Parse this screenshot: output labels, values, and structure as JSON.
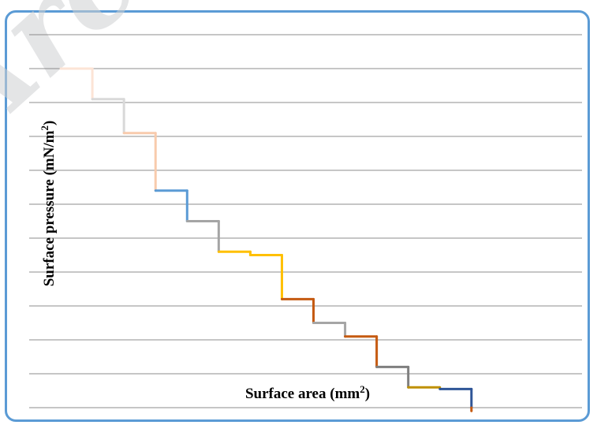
{
  "watermark": "Arc",
  "chart_data": {
    "type": "line",
    "xlabel_main": "Surface area (mm",
    "xlabel_sup": "2",
    "xlabel_end": ")",
    "ylabel_main": "Surface pressure (mN/m",
    "ylabel_sup": "2",
    "ylabel_end": ")",
    "grid": "horizontal",
    "legend": "none",
    "ylim": [
      0,
      11
    ],
    "xlim": [
      0,
      17.5
    ],
    "series": [
      {
        "color": "#fce4d6",
        "points": [
          [
            1,
            10
          ],
          [
            2,
            10
          ],
          [
            2,
            9.1
          ]
        ]
      },
      {
        "color": "#d9d9d9",
        "points": [
          [
            2,
            9.1
          ],
          [
            3,
            9.1
          ],
          [
            3,
            8.1
          ]
        ]
      },
      {
        "color": "#f8cbad",
        "points": [
          [
            3,
            8.1
          ],
          [
            4,
            8.1
          ],
          [
            4,
            6.4
          ]
        ]
      },
      {
        "color": "#5b9bd5",
        "points": [
          [
            4,
            6.4
          ],
          [
            5,
            6.4
          ],
          [
            5,
            5.5
          ]
        ]
      },
      {
        "color": "#a5a5a5",
        "points": [
          [
            5,
            5.5
          ],
          [
            6,
            5.5
          ],
          [
            6,
            4.6
          ]
        ]
      },
      {
        "color": "#ffc000",
        "points": [
          [
            6,
            4.6
          ],
          [
            7,
            4.6
          ],
          [
            7,
            4.5
          ]
        ]
      },
      {
        "color": "#ffc000",
        "points": [
          [
            7,
            4.5
          ],
          [
            8,
            4.5
          ],
          [
            8,
            3.2
          ]
        ]
      },
      {
        "color": "#c55a11",
        "points": [
          [
            8,
            3.2
          ],
          [
            9,
            3.2
          ],
          [
            9,
            2.5
          ]
        ]
      },
      {
        "color": "#a5a5a5",
        "points": [
          [
            9,
            2.5
          ],
          [
            10,
            2.5
          ],
          [
            10,
            2.1
          ]
        ]
      },
      {
        "color": "#c55a11",
        "points": [
          [
            10,
            2.1
          ],
          [
            11,
            2.1
          ],
          [
            11,
            1.2
          ]
        ]
      },
      {
        "color": "#7f7f7f",
        "points": [
          [
            11,
            1.2
          ],
          [
            12,
            1.2
          ],
          [
            12,
            0.6
          ]
        ]
      },
      {
        "color": "#bf9000",
        "points": [
          [
            12,
            0.6
          ],
          [
            13,
            0.6
          ]
        ]
      },
      {
        "color": "#2f5597",
        "points": [
          [
            13,
            0.55
          ],
          [
            14,
            0.55
          ],
          [
            14,
            0
          ]
        ]
      },
      {
        "color": "#c55a11",
        "points": [
          [
            14,
            0
          ],
          [
            14,
            -0.1
          ]
        ]
      }
    ]
  }
}
